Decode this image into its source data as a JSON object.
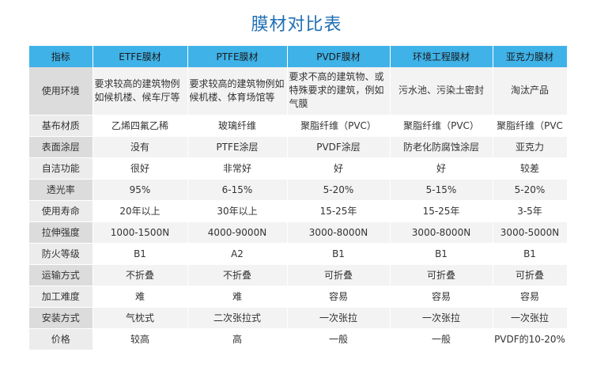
{
  "title": "膜材对比表",
  "headers": [
    "指标",
    "ETFE膜材",
    "PTFE膜材",
    "PVDF膜材",
    "环境工程膜材",
    "亚克力膜材"
  ],
  "rows": [
    {
      "label": "使用环境",
      "cells": [
        "要求较高的建筑物例如候机楼、候车厅等",
        "要求较高的建筑物例如候机楼、体育场馆等",
        "要求不高的建筑物、或特殊要求的建筑，例如气膜",
        "污水池、污染土密封",
        "淘汰产品"
      ]
    },
    {
      "label": "基布材质",
      "cells": [
        "乙烯四氟乙稀",
        "玻璃纤维",
        "聚脂纤维（PVC）",
        "聚脂纤维（PVC）",
        "聚脂纤维（PVC"
      ]
    },
    {
      "label": "表面涂层",
      "cells": [
        "没有",
        "PTFE涂层",
        "PVDF涂层",
        "防老化防腐蚀涂层",
        "亚克力"
      ]
    },
    {
      "label": "自洁功能",
      "cells": [
        "很好",
        "非常好",
        "好",
        "好",
        "较差"
      ]
    },
    {
      "label": "透光率",
      "cells": [
        "95%",
        "6-15%",
        "5-20%",
        "5-15%",
        "5-20%"
      ]
    },
    {
      "label": "使用寿命",
      "cells": [
        "20年以上",
        "30年以上",
        "15-25年",
        "15-25年",
        "3-5年"
      ]
    },
    {
      "label": "拉伸强度",
      "cells": [
        "1000-1500N",
        "4000-9000N",
        "3000-8000N",
        "3000-8000N",
        "3000-5000N"
      ]
    },
    {
      "label": "防火等级",
      "cells": [
        "B1",
        "A2",
        "B1",
        "B1",
        "B1"
      ]
    },
    {
      "label": "运输方式",
      "cells": [
        "不折叠",
        "不折叠",
        "可折叠",
        "可折叠",
        "可折叠"
      ]
    },
    {
      "label": "加工难度",
      "cells": [
        "难",
        "难",
        "容易",
        "容易",
        "容易"
      ]
    },
    {
      "label": "安装方式",
      "cells": [
        "气枕式",
        "二次张拉式",
        "一次张拉",
        "一次张拉",
        "一次张拉"
      ]
    },
    {
      "label": "价格",
      "cells": [
        "较高",
        "高",
        "一般",
        "一般",
        "PVDF的10-20%"
      ]
    }
  ]
}
